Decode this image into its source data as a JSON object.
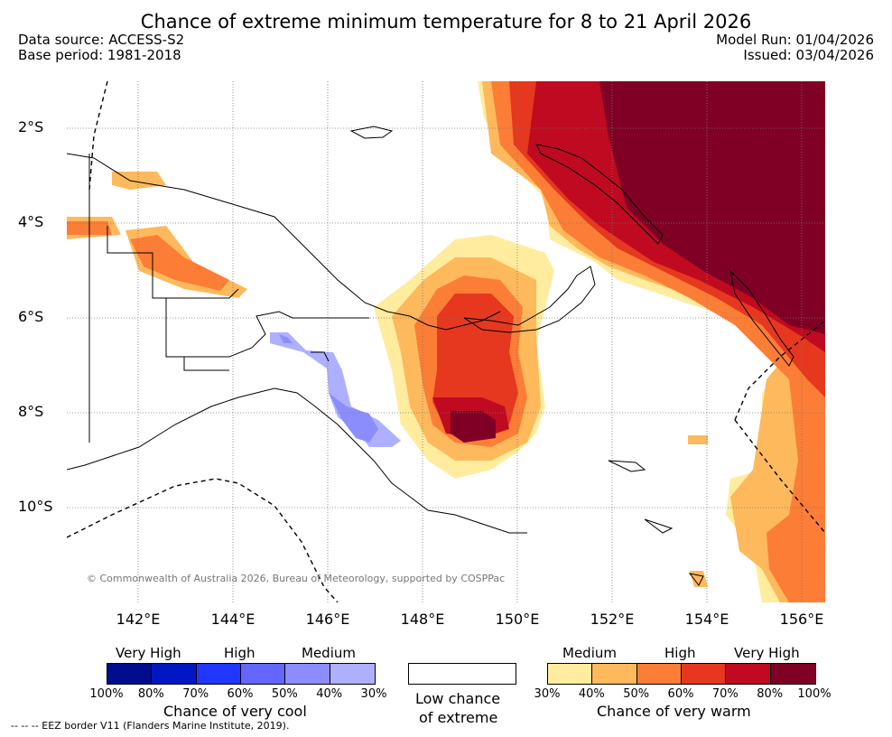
{
  "title": "Chance of extreme minimum temperature for 8 to 21 April 2026",
  "data_source": "Data source: ACCESS-S2",
  "base_period": "Base period: 1981-2018",
  "model_run": "Model Run: 01/04/2026",
  "issued": "Issued: 03/04/2026",
  "copyright": "© Commonwealth of Australia 2026, Bureau of Meteorology, supported by COSPPac",
  "eez_note": "-- -- -- EEZ border V11 (Flanders Marine Institute, 2019).",
  "lat_labels": [
    "2°S",
    "4°S",
    "6°S",
    "8°S",
    "10°S"
  ],
  "lon_labels": [
    "142°E",
    "144°E",
    "146°E",
    "148°E",
    "150°E",
    "152°E",
    "154°E",
    "156°E"
  ],
  "legend": {
    "cool": {
      "categories": [
        "Very High",
        "High",
        "Medium"
      ],
      "percentages": [
        "100%",
        "80%",
        "70%",
        "60%",
        "50%",
        "40%",
        "30%"
      ],
      "colors": [
        "#000d8f",
        "#0017c2",
        "#2137ff",
        "#6566ff",
        "#8b8dff",
        "#aeb0ff"
      ],
      "title": "Chance of very cool"
    },
    "low": {
      "line1": "Low chance",
      "line2": "of extreme"
    },
    "warm": {
      "categories": [
        "Medium",
        "High",
        "Very High"
      ],
      "percentages": [
        "30%",
        "40%",
        "50%",
        "60%",
        "70%",
        "80%",
        "100%"
      ],
      "colors": [
        "#ffec9e",
        "#fdb95c",
        "#fc7d36",
        "#e5381f",
        "#bf0a21",
        "#7f0024"
      ],
      "title": "Chance of very warm"
    }
  }
}
